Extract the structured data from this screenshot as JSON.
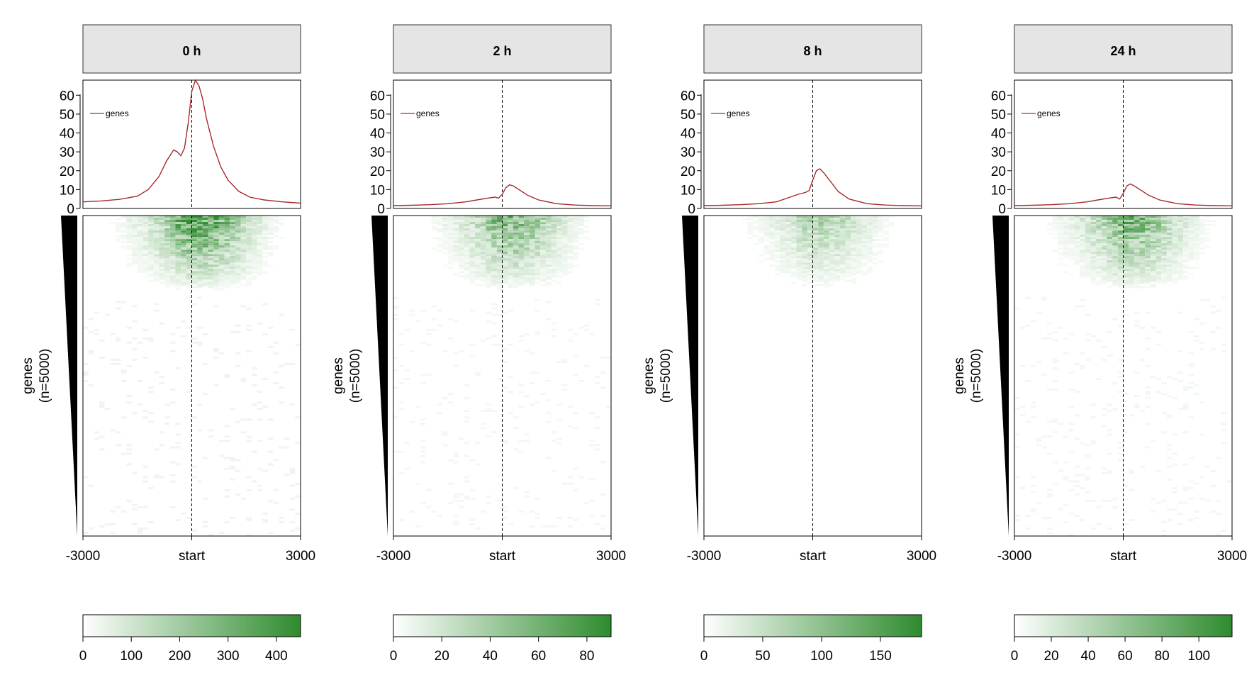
{
  "chart_data": [
    {
      "type": "line+heatmap",
      "title": "0 h",
      "profile_ylim": [
        0,
        68
      ],
      "profile_yticks": [
        0,
        10,
        20,
        30,
        40,
        50,
        60
      ],
      "legend": "genes",
      "x_ticks": [
        "-3000",
        "start",
        "3000"
      ],
      "xlim": [
        -3000,
        3000
      ],
      "ylabel_line1": "genes",
      "ylabel_line2": "(n=5000)",
      "profile": {
        "x": [
          -3000,
          -2500,
          -2000,
          -1500,
          -1200,
          -900,
          -700,
          -500,
          -400,
          -300,
          -200,
          -100,
          0,
          100,
          200,
          300,
          400,
          600,
          800,
          1000,
          1300,
          1600,
          2000,
          2500,
          3000
        ],
        "y": [
          3.5,
          4.0,
          4.8,
          6.5,
          10,
          17,
          25,
          31,
          30,
          28,
          32,
          45,
          62,
          68,
          65,
          58,
          48,
          33,
          22,
          15,
          9,
          6,
          4.5,
          3.5,
          2.8
        ]
      },
      "heat_intensity": 1.0,
      "colorbar_max": 450,
      "colorbar_ticks": [
        0,
        100,
        200,
        300,
        400
      ],
      "colors": {
        "high": "#2e8b2e",
        "low": "#ffffff",
        "line": "#a52a2a"
      }
    },
    {
      "type": "line+heatmap",
      "title": "2 h",
      "profile_ylim": [
        0,
        68
      ],
      "profile_yticks": [
        0,
        10,
        20,
        30,
        40,
        50,
        60
      ],
      "legend": "genes",
      "x_ticks": [
        "-3000",
        "start",
        "3000"
      ],
      "xlim": [
        -3000,
        3000
      ],
      "ylabel_line1": "genes",
      "ylabel_line2": "(n=5000)",
      "profile": {
        "x": [
          -3000,
          -2500,
          -2000,
          -1500,
          -1000,
          -700,
          -400,
          -200,
          -100,
          0,
          100,
          200,
          300,
          500,
          700,
          1000,
          1500,
          2000,
          2500,
          3000
        ],
        "y": [
          1.5,
          1.7,
          2.0,
          2.5,
          3.5,
          4.5,
          5.5,
          6.0,
          5.5,
          7.5,
          11,
          12.5,
          12,
          9.5,
          7,
          4.5,
          2.5,
          1.8,
          1.5,
          1.4
        ]
      },
      "heat_intensity": 0.75,
      "colorbar_max": 90,
      "colorbar_ticks": [
        0,
        20,
        40,
        60,
        80
      ],
      "colors": {
        "high": "#2e8b2e",
        "low": "#ffffff",
        "line": "#a52a2a"
      }
    },
    {
      "type": "line+heatmap",
      "title": "8 h",
      "profile_ylim": [
        0,
        68
      ],
      "profile_yticks": [
        0,
        10,
        20,
        30,
        40,
        50,
        60
      ],
      "legend": "genes",
      "x_ticks": [
        "-3000",
        "start",
        "3000"
      ],
      "xlim": [
        -3000,
        3000
      ],
      "ylabel_line1": "genes",
      "ylabel_line2": "(n=5000)",
      "profile": {
        "x": [
          -3000,
          -2500,
          -2000,
          -1500,
          -1000,
          -700,
          -400,
          -200,
          -100,
          0,
          100,
          200,
          300,
          500,
          700,
          1000,
          1500,
          2000,
          2500,
          3000
        ],
        "y": [
          1.5,
          1.7,
          2.0,
          2.5,
          3.5,
          5.5,
          7.5,
          8.5,
          9.5,
          15,
          20,
          21,
          19,
          14,
          9,
          5,
          2.5,
          1.8,
          1.5,
          1.4
        ]
      },
      "heat_intensity": 0.45,
      "colorbar_max": 185,
      "colorbar_ticks": [
        0,
        50,
        100,
        150
      ],
      "colors": {
        "high": "#2e8b2e",
        "low": "#ffffff",
        "line": "#a52a2a"
      }
    },
    {
      "type": "line+heatmap",
      "title": "24 h",
      "profile_ylim": [
        0,
        68
      ],
      "profile_yticks": [
        0,
        10,
        20,
        30,
        40,
        50,
        60
      ],
      "legend": "genes",
      "x_ticks": [
        "-3000",
        "start",
        "3000"
      ],
      "xlim": [
        -3000,
        3000
      ],
      "ylabel_line1": "genes",
      "ylabel_line2": "(n=5000)",
      "profile": {
        "x": [
          -3000,
          -2500,
          -2000,
          -1500,
          -1000,
          -700,
          -400,
          -200,
          -100,
          0,
          100,
          200,
          300,
          500,
          700,
          1000,
          1500,
          2000,
          2500,
          3000
        ],
        "y": [
          1.5,
          1.7,
          2.0,
          2.5,
          3.5,
          4.5,
          5.5,
          6.0,
          5.0,
          8,
          12,
          13,
          12,
          9.5,
          7,
          4.5,
          2.5,
          1.8,
          1.5,
          1.4
        ]
      },
      "heat_intensity": 0.8,
      "colorbar_max": 118,
      "colorbar_ticks": [
        0,
        20,
        40,
        60,
        80,
        100
      ],
      "colors": {
        "high": "#2e8b2e",
        "low": "#ffffff",
        "line": "#a52a2a"
      }
    }
  ]
}
